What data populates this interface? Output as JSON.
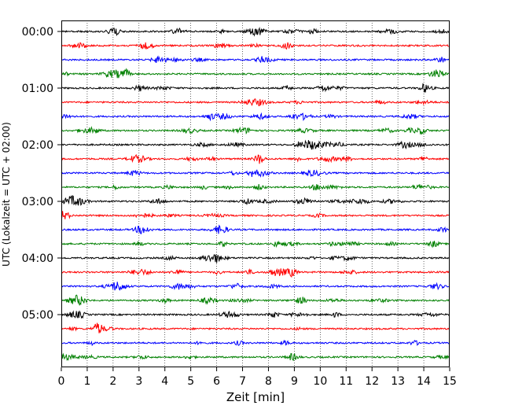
{
  "chart_data": {
    "type": "line",
    "title": "",
    "xlabel": "Zeit  [min]",
    "ylabel": "UTC (Lokalzeit = UTC + 02:00)",
    "xlim": [
      0,
      15
    ],
    "x_ticks": [
      "0",
      "1",
      "2",
      "3",
      "4",
      "5",
      "6",
      "7",
      "8",
      "9",
      "10",
      "11",
      "12",
      "13",
      "14",
      "15"
    ],
    "y_ticks": [
      "00:00",
      "01:00",
      "02:00",
      "03:00",
      "04:00",
      "05:00"
    ],
    "grid": "vertical dotted at each minute",
    "trace_interval_min": 15,
    "trace_colors": [
      "#000000",
      "#ff0000",
      "#0000ff",
      "#008000"
    ],
    "series": [
      {
        "start": "00:00",
        "color": "#000000"
      },
      {
        "start": "00:15",
        "color": "#ff0000"
      },
      {
        "start": "00:30",
        "color": "#0000ff"
      },
      {
        "start": "00:45",
        "color": "#008000"
      },
      {
        "start": "01:00",
        "color": "#000000"
      },
      {
        "start": "01:15",
        "color": "#ff0000"
      },
      {
        "start": "01:30",
        "color": "#0000ff"
      },
      {
        "start": "01:45",
        "color": "#008000"
      },
      {
        "start": "02:00",
        "color": "#000000"
      },
      {
        "start": "02:15",
        "color": "#ff0000"
      },
      {
        "start": "02:30",
        "color": "#0000ff"
      },
      {
        "start": "02:45",
        "color": "#008000"
      },
      {
        "start": "03:00",
        "color": "#000000"
      },
      {
        "start": "03:15",
        "color": "#ff0000"
      },
      {
        "start": "03:30",
        "color": "#0000ff"
      },
      {
        "start": "03:45",
        "color": "#008000"
      },
      {
        "start": "04:00",
        "color": "#000000"
      },
      {
        "start": "04:15",
        "color": "#ff0000"
      },
      {
        "start": "04:30",
        "color": "#0000ff"
      },
      {
        "start": "04:45",
        "color": "#008000"
      },
      {
        "start": "05:00",
        "color": "#000000"
      },
      {
        "start": "05:15",
        "color": "#ff0000"
      },
      {
        "start": "05:30",
        "color": "#0000ff"
      },
      {
        "start": "05:45",
        "color": "#008000"
      }
    ]
  }
}
